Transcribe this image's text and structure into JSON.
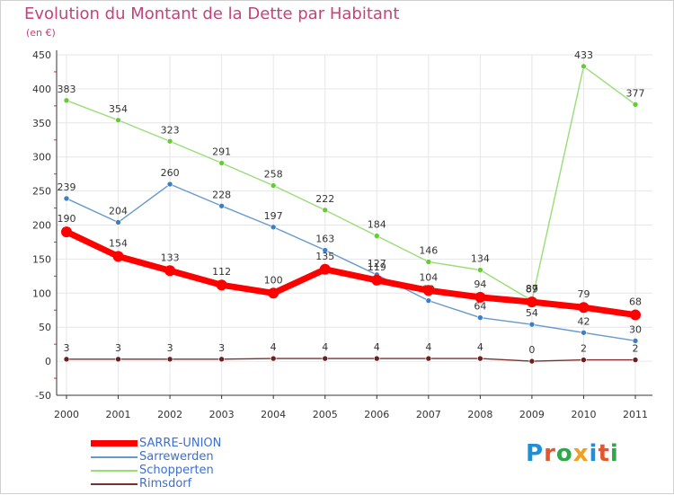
{
  "title": "Evolution du Montant de la Dette par Habitant",
  "subtitle": "(en €)",
  "logo": "Proxiti",
  "colors": {
    "title": "#c0457a",
    "axis": "#333333",
    "grid": "#e6e6e6",
    "logo_letters": [
      "#1f8fd6",
      "#e4572e",
      "#2ea84a",
      "#f29e1f",
      "#1f8fd6",
      "#e4572e",
      "#2ea84a"
    ]
  },
  "chart_data": {
    "type": "line",
    "title": "Evolution du Montant de la Dette par Habitant",
    "ylabel": "(en €)",
    "xlabel": "",
    "ylim": [
      -50,
      450
    ],
    "yticks": [
      -50,
      0,
      50,
      100,
      150,
      200,
      250,
      300,
      350,
      400,
      450
    ],
    "categories": [
      "2000",
      "2001",
      "2002",
      "2003",
      "2004",
      "2005",
      "2006",
      "2007",
      "2008",
      "2009",
      "2010",
      "2011"
    ],
    "grid": true,
    "legend_position": "bottom-left",
    "series": [
      {
        "name": "SARRE-UNION",
        "color": "#ff0000",
        "marker": "#ff0000",
        "thick": true,
        "values": [
          190,
          154,
          133,
          112,
          100,
          135,
          119,
          104,
          94,
          87,
          79,
          68
        ],
        "labels": [
          "190",
          "154",
          "133",
          "112",
          "100",
          "135",
          "119",
          "104",
          "94",
          "87",
          "79",
          "68"
        ]
      },
      {
        "name": "Sarrewerden",
        "color": "#6699cc",
        "marker": "#3d7fc6",
        "thick": false,
        "values": [
          239,
          204,
          260,
          228,
          197,
          163,
          127,
          89,
          64,
          54,
          42,
          30
        ],
        "labels": [
          "239",
          "204",
          "260",
          "228",
          "197",
          "163",
          "127",
          "89",
          "64",
          "54",
          "42",
          "30"
        ]
      },
      {
        "name": "Schopperten",
        "color": "#99dd77",
        "marker": "#66cc33",
        "thick": false,
        "values": [
          383,
          354,
          323,
          291,
          258,
          222,
          184,
          146,
          134,
          89,
          433,
          377
        ],
        "labels": [
          "383",
          "354",
          "323",
          "291",
          "258",
          "222",
          "184",
          "146",
          "134",
          "89",
          "433",
          "377"
        ]
      },
      {
        "name": "Rimsdorf",
        "color": "#7a3030",
        "marker": "#6b1f1f",
        "thick": false,
        "values": [
          3,
          3,
          3,
          3,
          4,
          4,
          4,
          4,
          4,
          0,
          2,
          2
        ],
        "labels": [
          "3",
          "3",
          "3",
          "3",
          "4",
          "4",
          "4",
          "4",
          "4",
          "0",
          "2",
          "2"
        ]
      }
    ]
  }
}
